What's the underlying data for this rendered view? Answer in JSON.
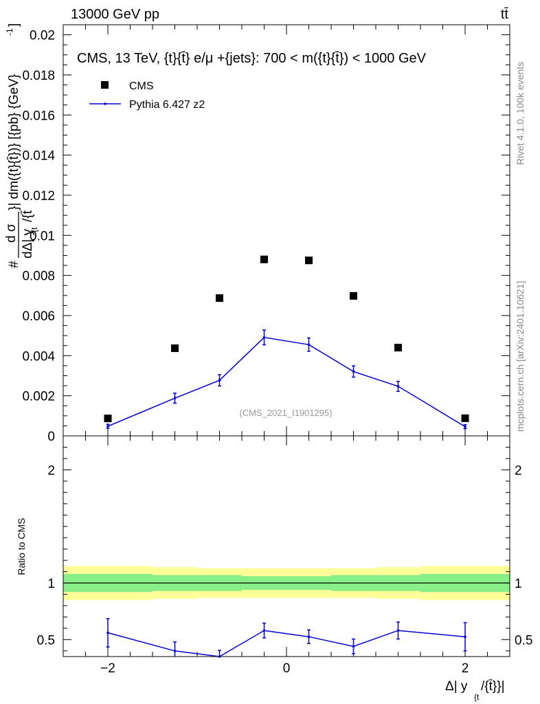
{
  "header": {
    "energy_label": "13000 GeV pp",
    "process_label": "tt̄"
  },
  "side_labels": {
    "rivet": "Rivet 4.1.0,  100k events",
    "mcplots": "mcplots.cern.ch [arXiv:2401.10621]"
  },
  "colors": {
    "cms": "#000000",
    "pythia": "#0000d0",
    "band_outer": "#ffff99",
    "band_inner": "#88ee88"
  },
  "chart_data": [
    {
      "type": "scatter",
      "title": "CMS, 13 TeV, {t}{t̄} e/μ +{jets}: 700 < m({t}{t̄}) < 1000 GeV",
      "ylabel": "# dσ/dΔ|y_{t}/{t̄}| dm({t}{t̄}) [{pb} {GeV}⁻¹]",
      "ylabel_parts": {
        "hash": "#",
        "numerator": "d σ",
        "denominator": "dΔ| y",
        "sub": "{t",
        "tail": "/{t̄",
        "rest": "}| dm({t}{t̄})} [{pb} {GeV}",
        "sup": "-1",
        "close": "]"
      },
      "xlabel": "",
      "watermark": "(CMS_2021_I1901295)",
      "xlim": [
        -2.5,
        2.5
      ],
      "ylim": [
        0,
        0.0205
      ],
      "yticks": [
        0,
        0.002,
        0.004,
        0.006,
        0.008,
        0.01,
        0.012,
        0.014,
        0.016,
        0.018,
        0.02
      ],
      "ytick_labels": [
        "0",
        "0.002",
        "0.004",
        "0.006",
        "0.008",
        "0.01",
        "0.012",
        "0.014",
        "0.016",
        "0.018",
        "0.02"
      ],
      "legend": [
        "CMS",
        "Pythia 6.427 z2"
      ],
      "legend_position": "top-left",
      "series": [
        {
          "name": "CMS",
          "style": "markers",
          "x": [
            -2.0,
            -1.25,
            -0.75,
            -0.25,
            0.25,
            0.75,
            1.25,
            2.0
          ],
          "y": [
            0.00087,
            0.00437,
            0.00687,
            0.0088,
            0.00875,
            0.00698,
            0.0044,
            0.00088
          ]
        },
        {
          "name": "Pythia 6.427 z2",
          "style": "line",
          "x": [
            -2.0,
            -1.25,
            -0.75,
            -0.25,
            0.25,
            0.75,
            1.25,
            2.0
          ],
          "y": [
            0.00048,
            0.00188,
            0.00277,
            0.00491,
            0.00455,
            0.00321,
            0.00247,
            0.00046
          ],
          "yerr": [
            0.0001,
            0.00025,
            0.00028,
            0.00037,
            0.00033,
            0.00028,
            0.00025,
            0.0001
          ]
        }
      ]
    },
    {
      "type": "line",
      "title": "",
      "ylabel": "Ratio to CMS",
      "xlabel": "Δ| y_{t}/{t̄}|",
      "xlabel_parts": {
        "main": "Δ| y",
        "sub": "{t",
        "tail": "/{t̄}}|"
      },
      "xlim": [
        -2.5,
        2.5
      ],
      "ylim": [
        0.35,
        2.3
      ],
      "xticks": [
        -2,
        0,
        2
      ],
      "xtick_labels": [
        "−2",
        "0",
        "2"
      ],
      "yticks": [
        0.5,
        1,
        2
      ],
      "ytick_labels": [
        "0.5",
        "1",
        "2"
      ],
      "bands": {
        "edges": [
          -2.5,
          -1.5,
          -1.0,
          -0.5,
          0.0,
          0.5,
          1.0,
          1.5,
          2.5
        ],
        "outer": [
          0.15,
          0.14,
          0.13,
          0.13,
          0.13,
          0.13,
          0.14,
          0.15
        ],
        "inner": [
          0.08,
          0.07,
          0.07,
          0.06,
          0.06,
          0.07,
          0.07,
          0.08
        ]
      },
      "series": [
        {
          "name": "Pythia 6.427 z2",
          "x": [
            -2.0,
            -1.25,
            -0.75,
            -0.25,
            0.25,
            0.75,
            1.25,
            2.0
          ],
          "y": [
            0.56,
            0.4,
            0.35,
            0.58,
            0.525,
            0.44,
            0.58,
            0.525
          ],
          "yerr": [
            0.125,
            0.08,
            0.055,
            0.065,
            0.06,
            0.065,
            0.075,
            0.125
          ]
        }
      ]
    }
  ]
}
